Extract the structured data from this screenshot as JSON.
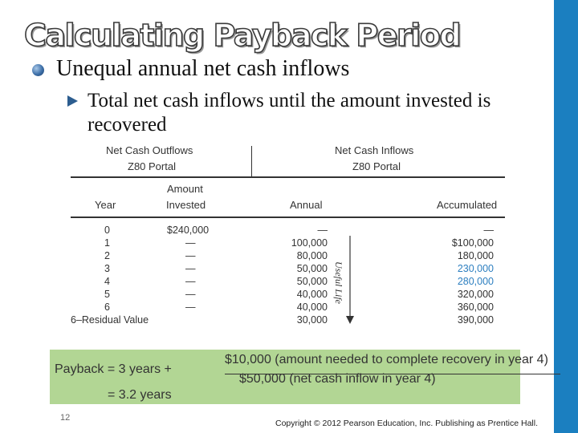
{
  "slide": {
    "title": "Calculating Payback Period",
    "bullet1": "Unequal annual net cash inflows",
    "bullet2": "Total net cash inflows until the amount invested is recovered",
    "page_number": "12",
    "copyright": "Copyright © 2012 Pearson Education, Inc. Publishing as Prentice Hall."
  },
  "table": {
    "group_outflows_line1": "Net Cash Outflows",
    "group_outflows_line2": "Z80 Portal",
    "group_inflows_line1": "Net Cash Inflows",
    "group_inflows_line2": "Z80 Portal",
    "col_year": "Year",
    "col_amount_line1": "Amount",
    "col_amount_line2": "Invested",
    "col_annual": "Annual",
    "col_accumulated": "Accumulated",
    "useful_life_label": "Useful Life",
    "rows": [
      {
        "year": "0",
        "invested": "$240,000",
        "annual": "—",
        "accumulated": "—"
      },
      {
        "year": "1",
        "invested": "—",
        "annual": "100,000",
        "accumulated": "$100,000"
      },
      {
        "year": "2",
        "invested": "—",
        "annual": "80,000",
        "accumulated": "180,000"
      },
      {
        "year": "3",
        "invested": "—",
        "annual": "50,000",
        "accumulated": "230,000"
      },
      {
        "year": "4",
        "invested": "—",
        "annual": "50,000",
        "accumulated": "280,000"
      },
      {
        "year": "5",
        "invested": "—",
        "annual": "40,000",
        "accumulated": "320,000"
      },
      {
        "year": "6",
        "invested": "—",
        "annual": "40,000",
        "accumulated": "360,000"
      },
      {
        "year": "6–Residual Value",
        "invested": "",
        "annual": "30,000",
        "accumulated": "390,000"
      }
    ],
    "highlight_color": "#2d7fc0"
  },
  "formula": {
    "lhs": "Payback = 3 years +",
    "numerator": "$10,000 (amount needed to complete recovery in year 4)",
    "denominator": "$50,000 (net cash inflow in year 4)",
    "result": "= 3.2 years",
    "background_color": "#b2d694"
  },
  "colors": {
    "accent_bar": "#1b7fc0"
  }
}
